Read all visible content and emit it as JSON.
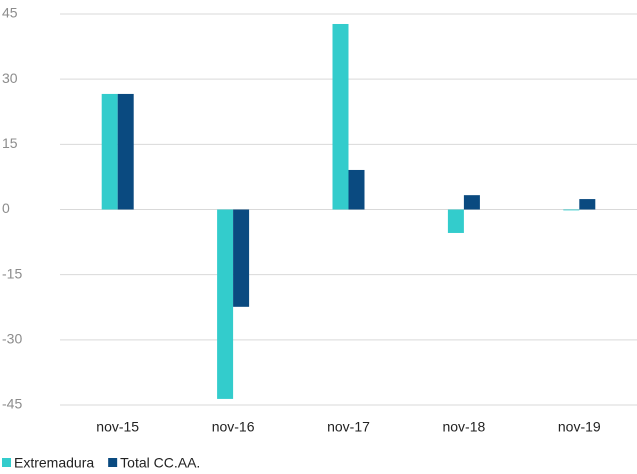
{
  "chart_data": {
    "type": "bar",
    "categories": [
      "nov-15",
      "nov-16",
      "nov-17",
      "nov-18",
      "nov-19"
    ],
    "series": [
      {
        "name": "Extremadura",
        "color": "#33cccc",
        "values": [
          26.6,
          -43.6,
          42.7,
          -5.4,
          -0.2
        ]
      },
      {
        "name": "Total CC.AA.",
        "color": "#0a4a80",
        "values": [
          26.6,
          -22.4,
          9.1,
          3.3,
          2.4
        ]
      }
    ],
    "ylim": [
      -45,
      45
    ],
    "yticks": [
      -45,
      -30,
      -15,
      0,
      15,
      30,
      45
    ],
    "grid": true,
    "legend": "bottom-left"
  }
}
